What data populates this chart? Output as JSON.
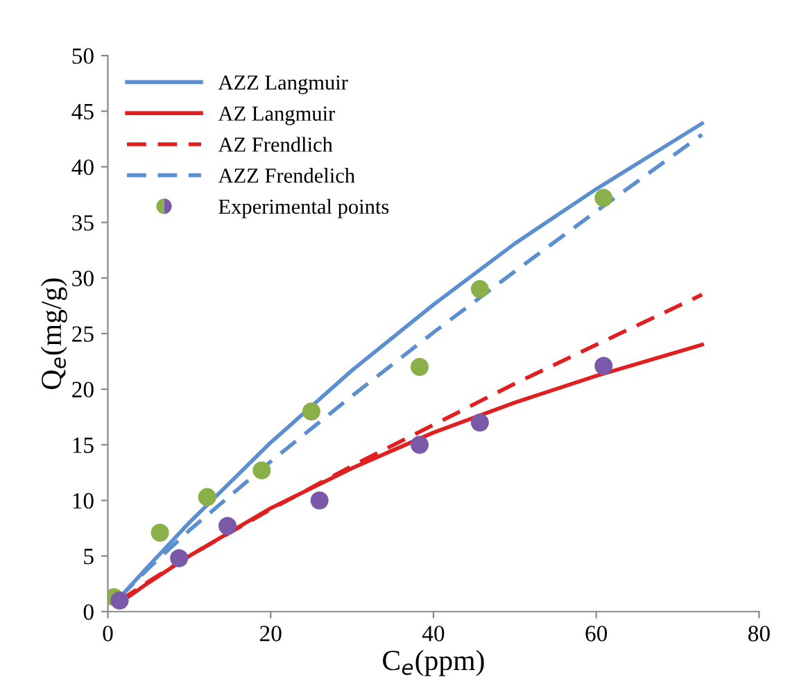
{
  "chart_data": {
    "type": "line",
    "xlabel": "C$_{e}$(ppm)",
    "ylabel": "Q$_{e}$(mg/g)",
    "xlim": [
      0,
      80
    ],
    "xticks": [
      0,
      20,
      40,
      60,
      80
    ],
    "ylim": [
      0,
      50
    ],
    "yticks": [
      0,
      5,
      10,
      15,
      20,
      25,
      30,
      35,
      40,
      45,
      50
    ],
    "grid": false,
    "legend": "top left",
    "series": [
      {
        "name": "AZZ Langmuir",
        "color": "#5b8fd0",
        "line_style": "solid",
        "x": [
          1.5,
          5,
          10,
          20,
          30,
          40,
          50,
          60,
          73
        ],
        "values": [
          1.3,
          4.1,
          8.0,
          15.2,
          21.7,
          27.6,
          33.1,
          38.0,
          43.9
        ]
      },
      {
        "name": "AZ Langmuir",
        "color": "#e02020",
        "line_style": "solid",
        "x": [
          1.5,
          5,
          10,
          20,
          30,
          40,
          50,
          60,
          73
        ],
        "values": [
          0.8,
          2.6,
          5.0,
          9.3,
          12.9,
          16.1,
          18.8,
          21.2,
          24.0
        ]
      },
      {
        "name": "AZ Frendlich",
        "color": "#e02020",
        "line_style": "dashed",
        "x": [
          1.5,
          5,
          10,
          20,
          30,
          40,
          50,
          60,
          73
        ],
        "values": [
          1.0,
          2.7,
          5.0,
          9.2,
          13.1,
          16.8,
          20.5,
          24.0,
          28.5
        ]
      },
      {
        "name": "AZZ Frendelich",
        "color": "#5b8fd0",
        "line_style": "dashed",
        "x": [
          1.5,
          5,
          10,
          20,
          30,
          40,
          50,
          60,
          73
        ],
        "values": [
          1.3,
          3.9,
          7.3,
          13.5,
          19.4,
          25.1,
          30.6,
          36.0,
          42.9
        ]
      },
      {
        "name": "Experimental points",
        "type": "scatter",
        "marker": "circle",
        "x": [
          0.75,
          6.4,
          12.2,
          18.9,
          25.0,
          38.3,
          45.7,
          60.9,
          1.45,
          8.75,
          14.7,
          26.0,
          38.3,
          45.7,
          60.9
        ],
        "values": [
          1.3,
          7.1,
          10.3,
          12.7,
          18.0,
          22.0,
          29.0,
          37.2,
          1.0,
          4.8,
          7.7,
          10.0,
          15.0,
          17.0,
          22.1
        ],
        "colors": [
          "#8bb04a",
          "#8bb04a",
          "#8bb04a",
          "#8bb04a",
          "#8bb04a",
          "#8bb04a",
          "#8bb04a",
          "#8bb04a",
          "#7a5aa8",
          "#7a5aa8",
          "#7a5aa8",
          "#7a5aa8",
          "#7a5aa8",
          "#7a5aa8",
          "#7a5aa8"
        ]
      }
    ]
  }
}
